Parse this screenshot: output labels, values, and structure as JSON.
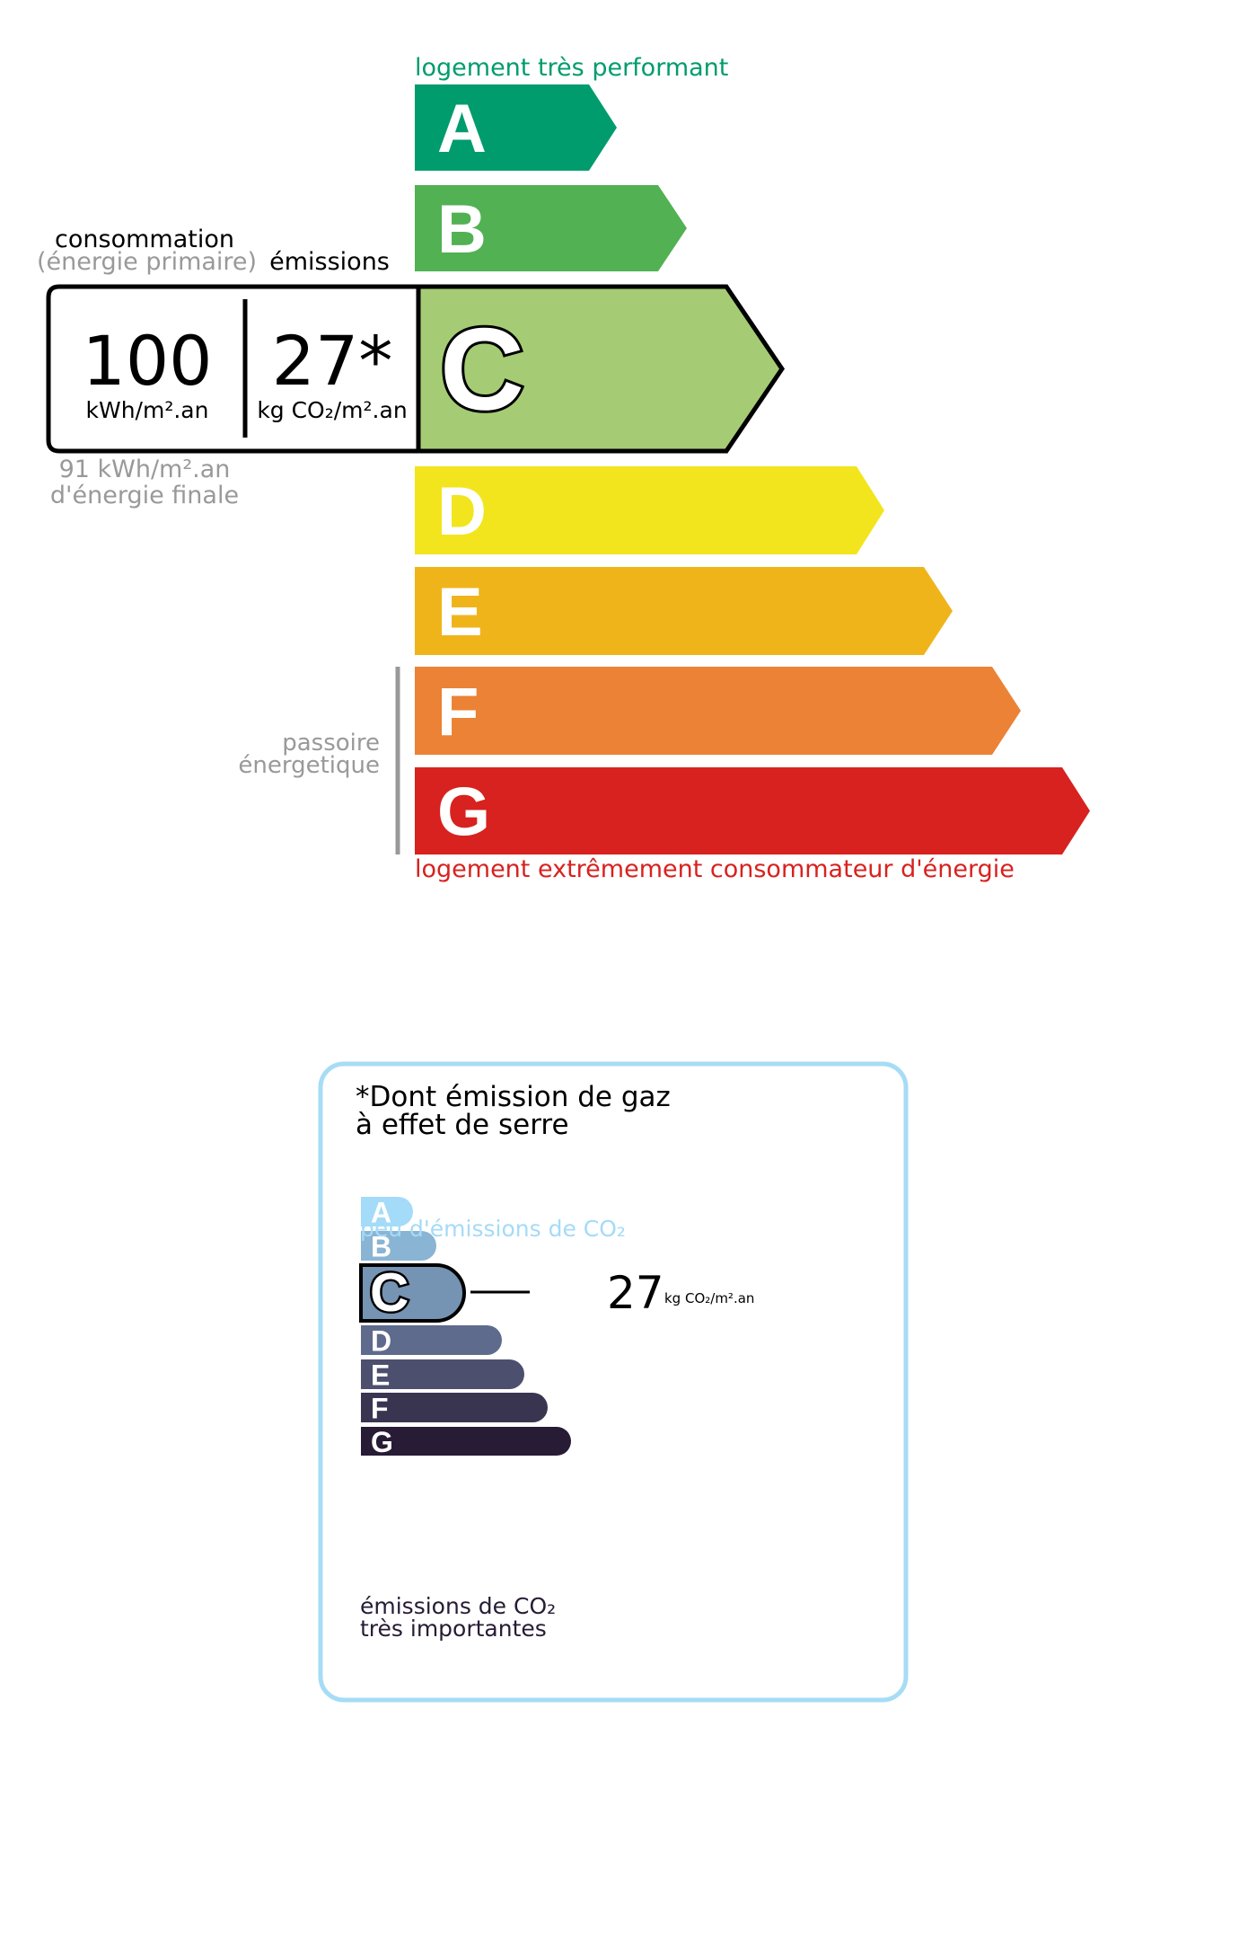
{
  "energy": {
    "top_label": "logement très performant",
    "bottom_label": "logement extrêmement consommateur d'énergie",
    "classes": [
      {
        "letter": "A",
        "color": "#009c6d"
      },
      {
        "letter": "B",
        "color": "#52b153"
      },
      {
        "letter": "C",
        "color": "#a5cc74"
      },
      {
        "letter": "D",
        "color": "#f2e51e"
      },
      {
        "letter": "E",
        "color": "#f0b41b"
      },
      {
        "letter": "F",
        "color": "#eb8235"
      },
      {
        "letter": "G",
        "color": "#d7221f"
      }
    ],
    "current_class": "C",
    "consumption_label": "consommation",
    "consumption_sublabel": "(énergie primaire)",
    "emissions_label": "émissions",
    "consumption_value": "100",
    "consumption_unit": "kWh/m².an",
    "emissions_value": "27*",
    "emissions_unit": "kg CO₂/m².an",
    "final_energy_value": "91 kWh/m².an",
    "final_energy_label": "d'énergie finale",
    "passoire_line1": "passoire",
    "passoire_line2": "énergetique"
  },
  "ghg": {
    "title_line1": "*Dont émission de gaz",
    "title_line2": "à effet de serre",
    "top_label": "peu d'émissions de CO₂",
    "bottom_line1": "émissions de CO₂",
    "bottom_line2": "très importantes",
    "classes": [
      {
        "letter": "A",
        "color": "#a4dbf8"
      },
      {
        "letter": "B",
        "color": "#8ab4d3"
      },
      {
        "letter": "C",
        "color": "#7593b2"
      },
      {
        "letter": "D",
        "color": "#5e6b8c"
      },
      {
        "letter": "E",
        "color": "#4c4f6e"
      },
      {
        "letter": "F",
        "color": "#393551"
      },
      {
        "letter": "G",
        "color": "#281b35"
      }
    ],
    "current_class": "C",
    "value": "27",
    "unit": "kg CO₂/m².an",
    "border_color": "#a6dcf5"
  }
}
